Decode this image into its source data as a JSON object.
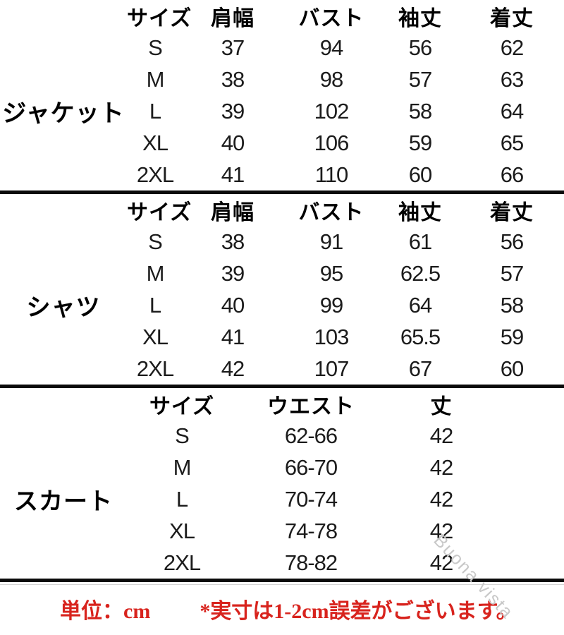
{
  "page": {
    "background": "#ffffff",
    "text_color": "#1c1c1c",
    "header_color": "#000000",
    "accent_red": "#d8231d",
    "watermark_color": "#c8c8c8"
  },
  "watermark": "Buona vista",
  "tables": [
    {
      "item": "ジャケット",
      "headers": [
        "サイズ",
        "肩幅",
        "バスト",
        "袖丈",
        "着丈"
      ],
      "rows": [
        [
          "S",
          "37",
          "94",
          "56",
          "62"
        ],
        [
          "M",
          "38",
          "98",
          "57",
          "63"
        ],
        [
          "L",
          "39",
          "102",
          "58",
          "64"
        ],
        [
          "XL",
          "40",
          "106",
          "59",
          "65"
        ],
        [
          "2XL",
          "41",
          "110",
          "60",
          "66"
        ]
      ]
    },
    {
      "item": "シャツ",
      "headers": [
        "サイズ",
        "肩幅",
        "バスト",
        "袖丈",
        "着丈"
      ],
      "rows": [
        [
          "S",
          "38",
          "91",
          "61",
          "56"
        ],
        [
          "M",
          "39",
          "95",
          "62.5",
          "57"
        ],
        [
          "L",
          "40",
          "99",
          "64",
          "58"
        ],
        [
          "XL",
          "41",
          "103",
          "65.5",
          "59"
        ],
        [
          "2XL",
          "42",
          "107",
          "67",
          "60"
        ]
      ]
    },
    {
      "item": "スカート",
      "headers": [
        "サイズ",
        "ウエスト",
        "丈"
      ],
      "rows": [
        [
          "S",
          "62-66",
          "42"
        ],
        [
          "M",
          "66-70",
          "42"
        ],
        [
          "L",
          "70-74",
          "42"
        ],
        [
          "XL",
          "74-78",
          "42"
        ],
        [
          "2XL",
          "78-82",
          "42"
        ]
      ]
    }
  ],
  "footer": {
    "unit_label": "単位：cm",
    "note": "*実寸は1-2cm誤差がございます。"
  }
}
